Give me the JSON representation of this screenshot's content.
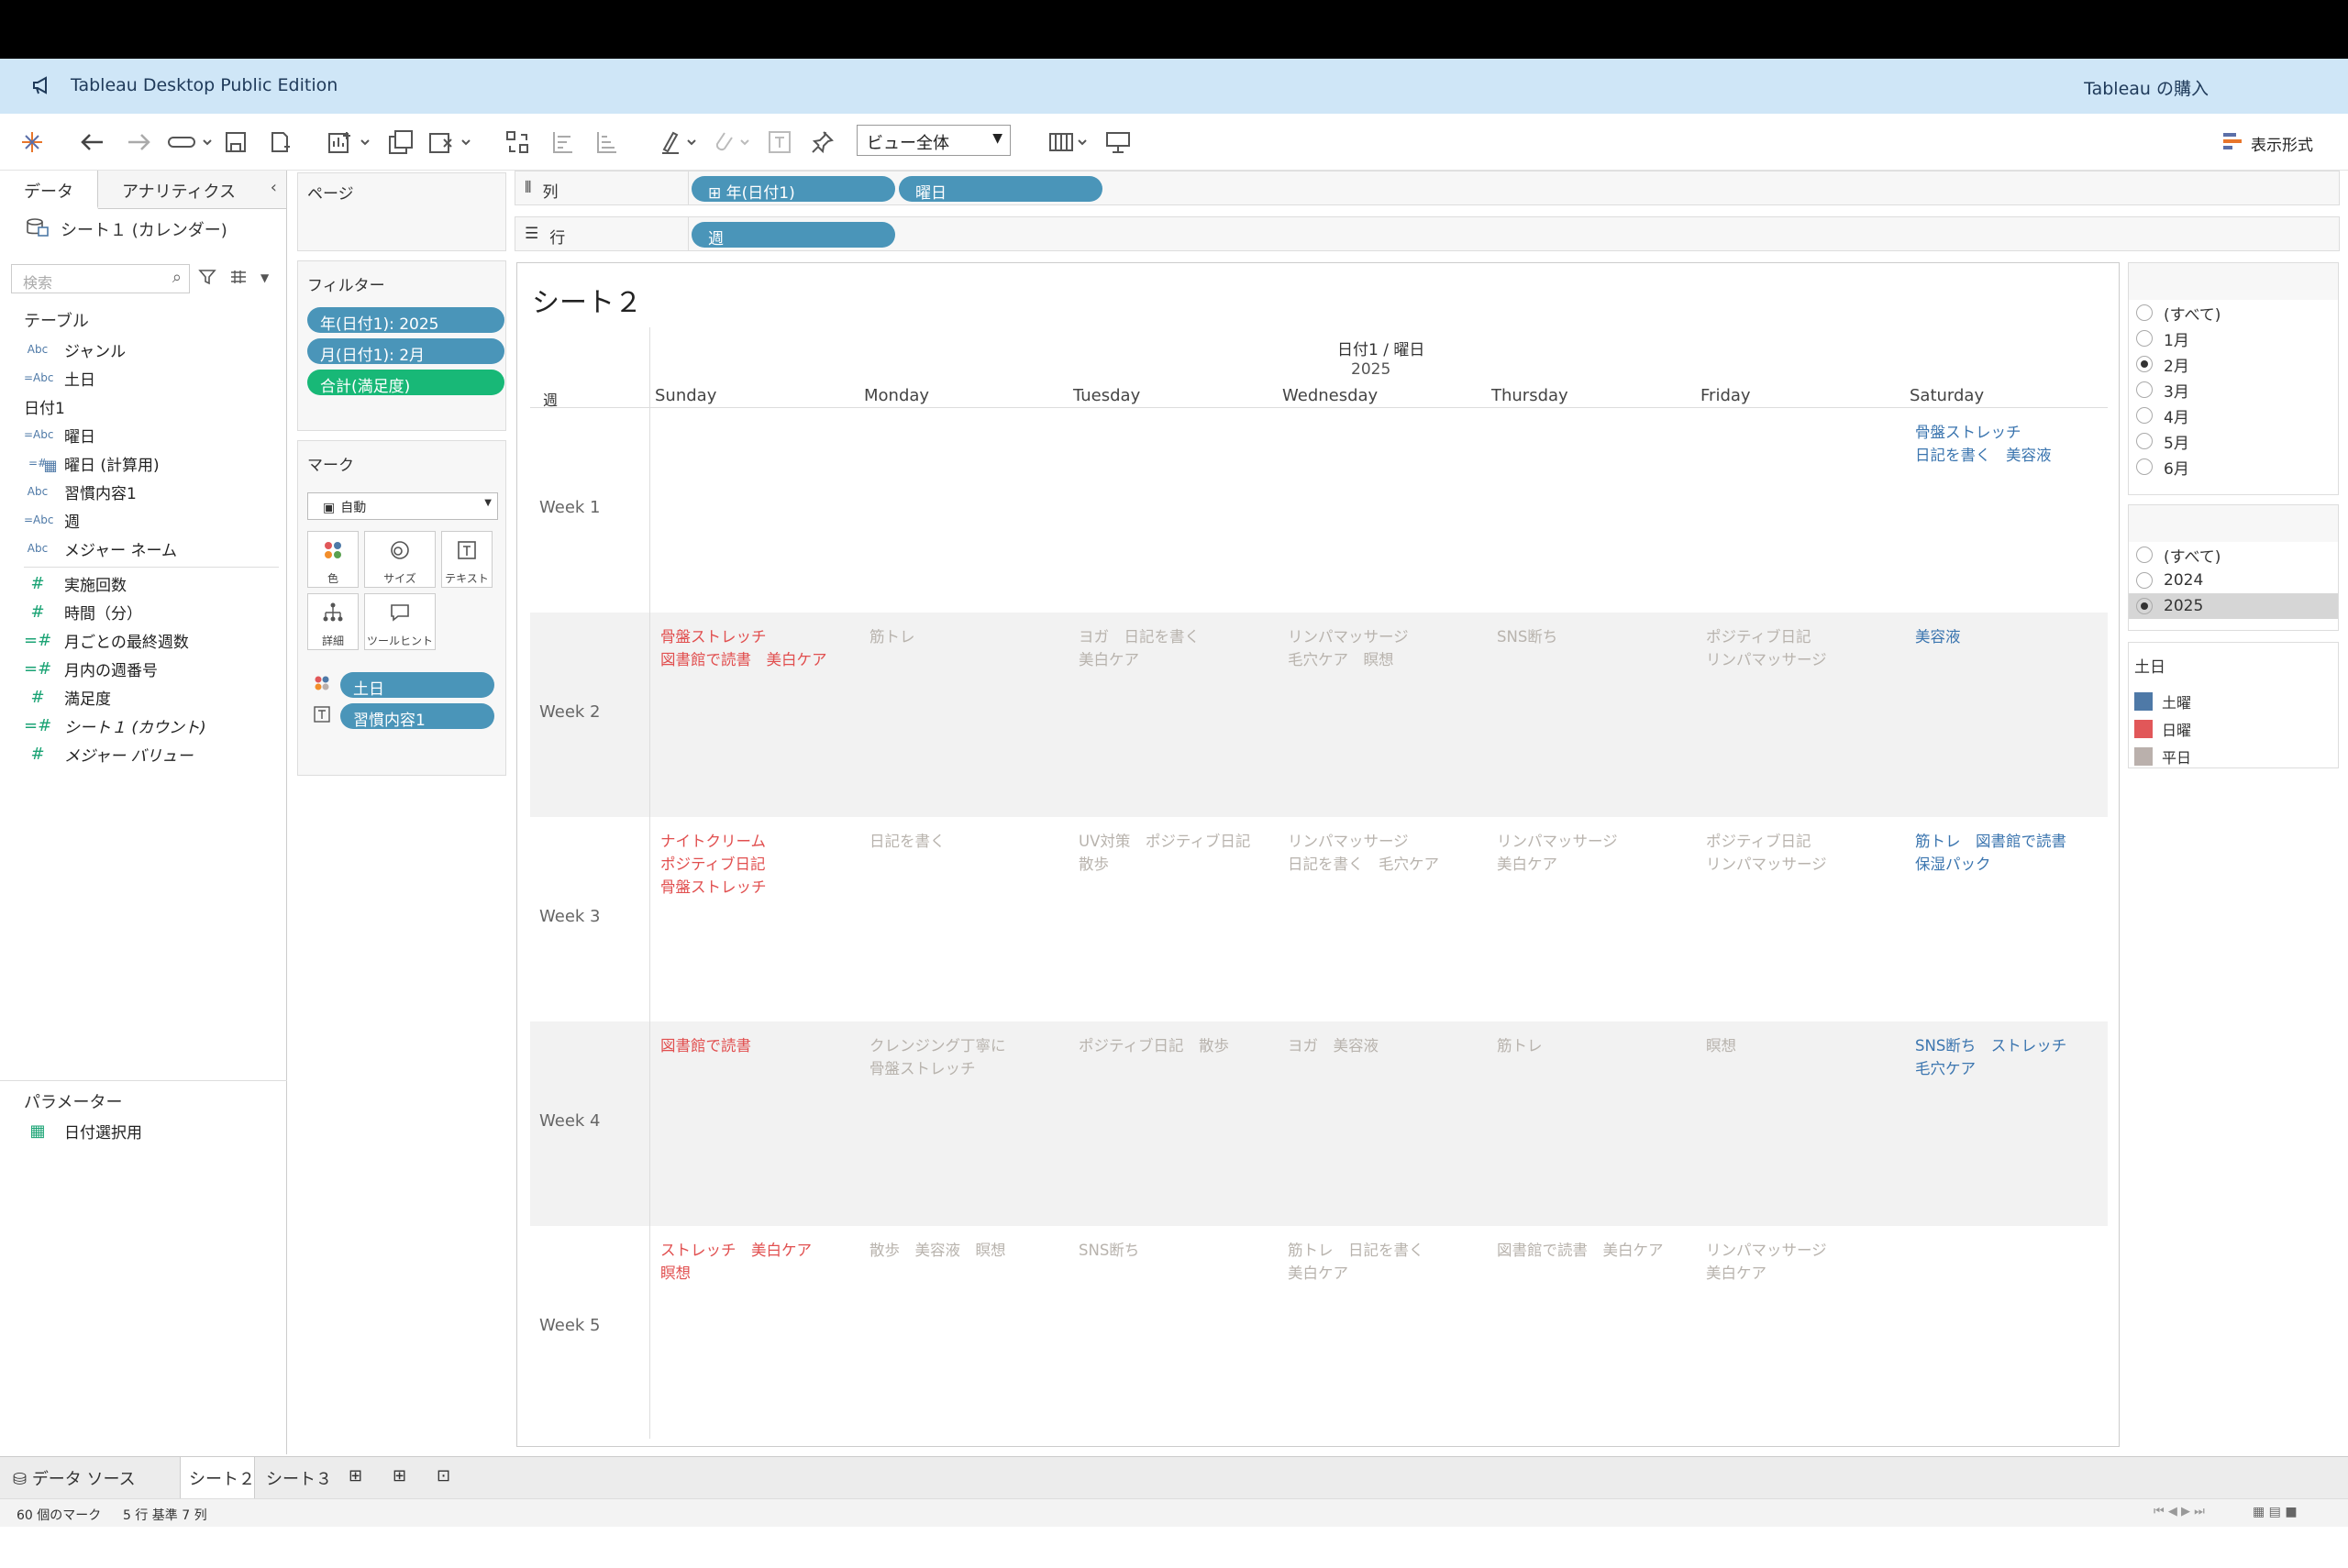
{
  "app": {
    "banner_title": "Tableau Desktop Public Edition",
    "buy_label": "Tableau の購入"
  },
  "toolbar": {
    "view_select": "ビュー全体",
    "show_me": "表示形式"
  },
  "left": {
    "tab_data": "データ",
    "tab_analytics": "アナリティクス",
    "datasource": "シート１ (カレンダー)",
    "search_placeholder": "検索",
    "tables_header": "テーブル",
    "fields": [
      {
        "icon": "Abc",
        "name": "ジャンル"
      },
      {
        "icon": "=Abc",
        "name": "土日"
      },
      {
        "icon": "cal",
        "name": "日付1"
      },
      {
        "icon": "=Abc",
        "name": "曜日"
      },
      {
        "icon": "=#",
        "name": "曜日 (計算用)"
      },
      {
        "icon": "Abc",
        "name": "習慣内容1"
      },
      {
        "icon": "=Abc",
        "name": "週"
      },
      {
        "icon": "Abc",
        "name": "メジャー ネーム"
      }
    ],
    "measures": [
      {
        "icon": "#",
        "name": "実施回数"
      },
      {
        "icon": "#",
        "name": "時間（分）"
      },
      {
        "icon": "=#",
        "name": "月ごとの最終週数"
      },
      {
        "icon": "=#",
        "name": "月内の週番号"
      },
      {
        "icon": "#",
        "name": "満足度"
      },
      {
        "icon": "=#",
        "name": "シート１ (カウント)"
      },
      {
        "icon": "#",
        "name": "メジャー バリュー"
      }
    ],
    "params_header": "パラメーター",
    "param": "日付選択用"
  },
  "shelves": {
    "pages": "ページ",
    "filters": "フィルター",
    "filter_pills": [
      "年(日付1): 2025",
      "月(日付1): 2月",
      "合計(満足度)"
    ],
    "marks": "マーク",
    "mark_type": "自動",
    "mark_buttons": [
      "色",
      "サイズ",
      "テキスト",
      "詳細",
      "ツールヒント"
    ],
    "mark_pills": [
      "土日",
      "習慣内容1"
    ],
    "columns_label": "列",
    "rows_label": "行",
    "column_pills": [
      "年(日付1)",
      "曜日"
    ],
    "row_pills": [
      "週"
    ]
  },
  "view": {
    "title": "シート２",
    "header1": "日付1 / 曜日",
    "header2": "2025",
    "week_header": "週",
    "days": [
      "Sunday",
      "Monday",
      "Tuesday",
      "Wednesday",
      "Thursday",
      "Friday",
      "Saturday"
    ],
    "weeks": [
      {
        "label": "Week 1",
        "cells": [
          "",
          "",
          "",
          "",
          "",
          "",
          "骨盤ストレッチ\n日記を書く　美容液"
        ]
      },
      {
        "label": "Week 2",
        "cells": [
          "骨盤ストレッチ\n図書館で読書　美白ケア",
          "筋トレ",
          "ヨガ　日記を書く\n美白ケア",
          "リンパマッサージ\n毛穴ケア　瞑想",
          "SNS断ち",
          "ポジティブ日記\nリンパマッサージ",
          "美容液"
        ]
      },
      {
        "label": "Week 3",
        "cells": [
          "ナイトクリーム\nポジティブ日記\n骨盤ストレッチ",
          "日記を書く",
          "UV対策　ポジティブ日記\n散歩",
          "リンパマッサージ\n日記を書く　毛穴ケア",
          "リンパマッサージ\n美白ケア",
          "ポジティブ日記\nリンパマッサージ",
          "筋トレ　図書館で読書\n保湿パック"
        ]
      },
      {
        "label": "Week 4",
        "cells": [
          "図書館で読書",
          "クレンジング丁寧に\n骨盤ストレッチ",
          "ポジティブ日記　散歩",
          "ヨガ　美容液",
          "筋トレ",
          "瞑想",
          "SNS断ち　ストレッチ\n毛穴ケア"
        ]
      },
      {
        "label": "Week 5",
        "cells": [
          "ストレッチ　美白ケア\n瞑想",
          "散歩　美容液　瞑想",
          "SNS断ち",
          "筋トレ　日記を書く\n美白ケア",
          "図書館で読書　美白ケア",
          "リンパマッサージ\n美白ケア",
          ""
        ]
      }
    ]
  },
  "right": {
    "month_options": [
      "(すべて)",
      "1月",
      "2月",
      "3月",
      "4月",
      "5月",
      "6月"
    ],
    "month_selected": "2月",
    "year_options": [
      "(すべて)",
      "2024",
      "2025"
    ],
    "year_selected": "2025",
    "legend_title": "土日",
    "legend": [
      {
        "label": "土曜",
        "color": "#4e79a7"
      },
      {
        "label": "日曜",
        "color": "#e15759"
      },
      {
        "label": "平日",
        "color": "#bab0ac"
      }
    ]
  },
  "bottom": {
    "datasource_tab": "データ ソース",
    "sheet_tabs": [
      "シート２",
      "シート３"
    ],
    "status_marks": "60 個のマーク",
    "status_rows": "5 行 基準 7 列"
  }
}
